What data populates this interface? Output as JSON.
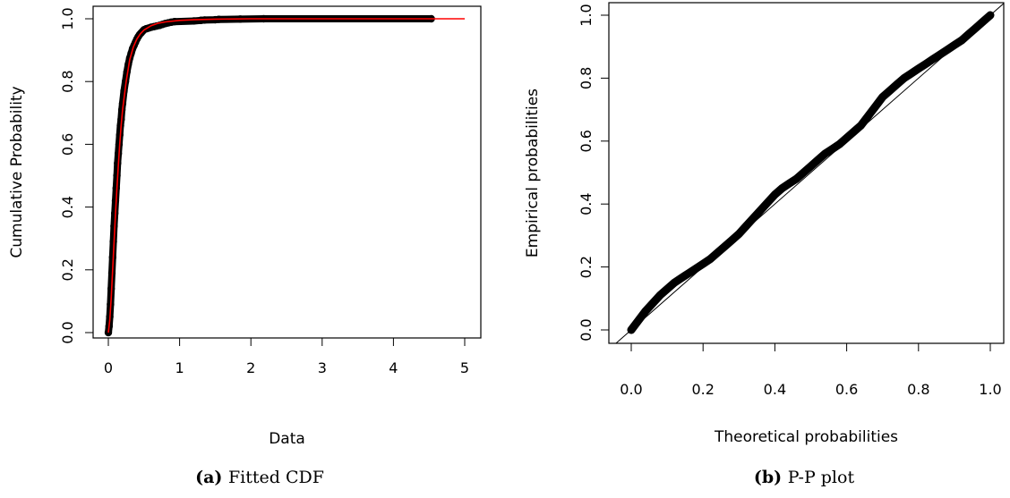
{
  "chart_data": [
    {
      "type": "scatter",
      "caption_tag": "(a)",
      "caption_text": "Fitted CDF",
      "xlabel": "Data",
      "ylabel": "Cumulative Probability",
      "xlim": [
        0,
        5
      ],
      "ylim": [
        0,
        1
      ],
      "xticks": [
        "0",
        "1",
        "2",
        "3",
        "4",
        "5"
      ],
      "yticks": [
        "0.0",
        "0.2",
        "0.4",
        "0.6",
        "0.8",
        "1.0"
      ],
      "grid": false,
      "fit_color": "#ff0000",
      "series": [
        {
          "kind": "points",
          "x": [
            0.0,
            0.01,
            0.02,
            0.03,
            0.04,
            0.05,
            0.06,
            0.07,
            0.08,
            0.09,
            0.1,
            0.11,
            0.12,
            0.13,
            0.14,
            0.15,
            0.16,
            0.17,
            0.18,
            0.19,
            0.2,
            0.22,
            0.24,
            0.26,
            0.28,
            0.3,
            0.32,
            0.34,
            0.36,
            0.38,
            0.4,
            0.42,
            0.44,
            0.46,
            0.48,
            0.5,
            0.53,
            0.56,
            0.6,
            0.64,
            0.68,
            0.72,
            0.76,
            0.8,
            0.84,
            0.88,
            0.93,
            1.2,
            1.3,
            1.35,
            1.5,
            1.55,
            1.85,
            2.18,
            4.53
          ],
          "y": [
            0.0,
            0.02,
            0.05,
            0.09,
            0.14,
            0.19,
            0.24,
            0.29,
            0.34,
            0.38,
            0.42,
            0.46,
            0.5,
            0.54,
            0.57,
            0.6,
            0.63,
            0.66,
            0.68,
            0.71,
            0.73,
            0.77,
            0.8,
            0.83,
            0.855,
            0.875,
            0.89,
            0.905,
            0.915,
            0.925,
            0.935,
            0.943,
            0.95,
            0.955,
            0.96,
            0.965,
            0.968,
            0.97,
            0.973,
            0.975,
            0.977,
            0.979,
            0.982,
            0.985,
            0.987,
            0.989,
            0.991,
            0.993,
            0.995,
            0.996,
            0.997,
            0.998,
            0.999,
            1.0,
            1.0
          ]
        },
        {
          "kind": "fitted-line",
          "x": [
            0.0,
            0.02,
            0.04,
            0.06,
            0.08,
            0.1,
            0.12,
            0.14,
            0.16,
            0.18,
            0.2,
            0.25,
            0.3,
            0.35,
            0.4,
            0.45,
            0.5,
            0.6,
            0.7,
            0.8,
            1.0,
            1.2,
            1.5,
            2.0,
            3.0,
            4.0,
            5.0
          ],
          "y": [
            0.0,
            0.04,
            0.11,
            0.2,
            0.29,
            0.38,
            0.46,
            0.53,
            0.6,
            0.66,
            0.71,
            0.8,
            0.87,
            0.91,
            0.935,
            0.952,
            0.964,
            0.978,
            0.986,
            0.99,
            0.995,
            0.997,
            0.999,
            1.0,
            1.0,
            1.0,
            1.0
          ]
        }
      ]
    },
    {
      "type": "scatter",
      "caption_tag": "(b)",
      "caption_text": "P-P plot",
      "xlabel": "Theoretical probabilities",
      "ylabel": "Empirical probabilities",
      "xlim": [
        0,
        1
      ],
      "ylim": [
        0,
        1
      ],
      "xticks": [
        "0.0",
        "0.2",
        "0.4",
        "0.6",
        "0.8",
        "1.0"
      ],
      "yticks": [
        "0.0",
        "0.2",
        "0.4",
        "0.6",
        "0.8",
        "1.0"
      ],
      "grid": false,
      "reference_line": "y = x",
      "series": [
        {
          "kind": "points",
          "x": [
            0.0,
            0.02,
            0.04,
            0.06,
            0.08,
            0.1,
            0.12,
            0.14,
            0.16,
            0.18,
            0.2,
            0.22,
            0.24,
            0.26,
            0.28,
            0.3,
            0.32,
            0.34,
            0.36,
            0.38,
            0.4,
            0.42,
            0.44,
            0.46,
            0.48,
            0.5,
            0.52,
            0.54,
            0.56,
            0.58,
            0.6,
            0.62,
            0.64,
            0.66,
            0.68,
            0.7,
            0.72,
            0.74,
            0.76,
            0.78,
            0.8,
            0.82,
            0.84,
            0.86,
            0.88,
            0.9,
            0.92,
            0.94,
            0.96,
            0.98,
            1.0
          ],
          "y": [
            0.0,
            0.03,
            0.06,
            0.085,
            0.11,
            0.13,
            0.15,
            0.165,
            0.18,
            0.195,
            0.21,
            0.225,
            0.245,
            0.265,
            0.285,
            0.305,
            0.33,
            0.355,
            0.38,
            0.405,
            0.43,
            0.45,
            0.465,
            0.48,
            0.5,
            0.52,
            0.54,
            0.56,
            0.575,
            0.59,
            0.61,
            0.63,
            0.65,
            0.68,
            0.71,
            0.74,
            0.76,
            0.78,
            0.8,
            0.815,
            0.83,
            0.845,
            0.86,
            0.875,
            0.89,
            0.905,
            0.92,
            0.94,
            0.96,
            0.98,
            1.0
          ]
        }
      ]
    }
  ]
}
